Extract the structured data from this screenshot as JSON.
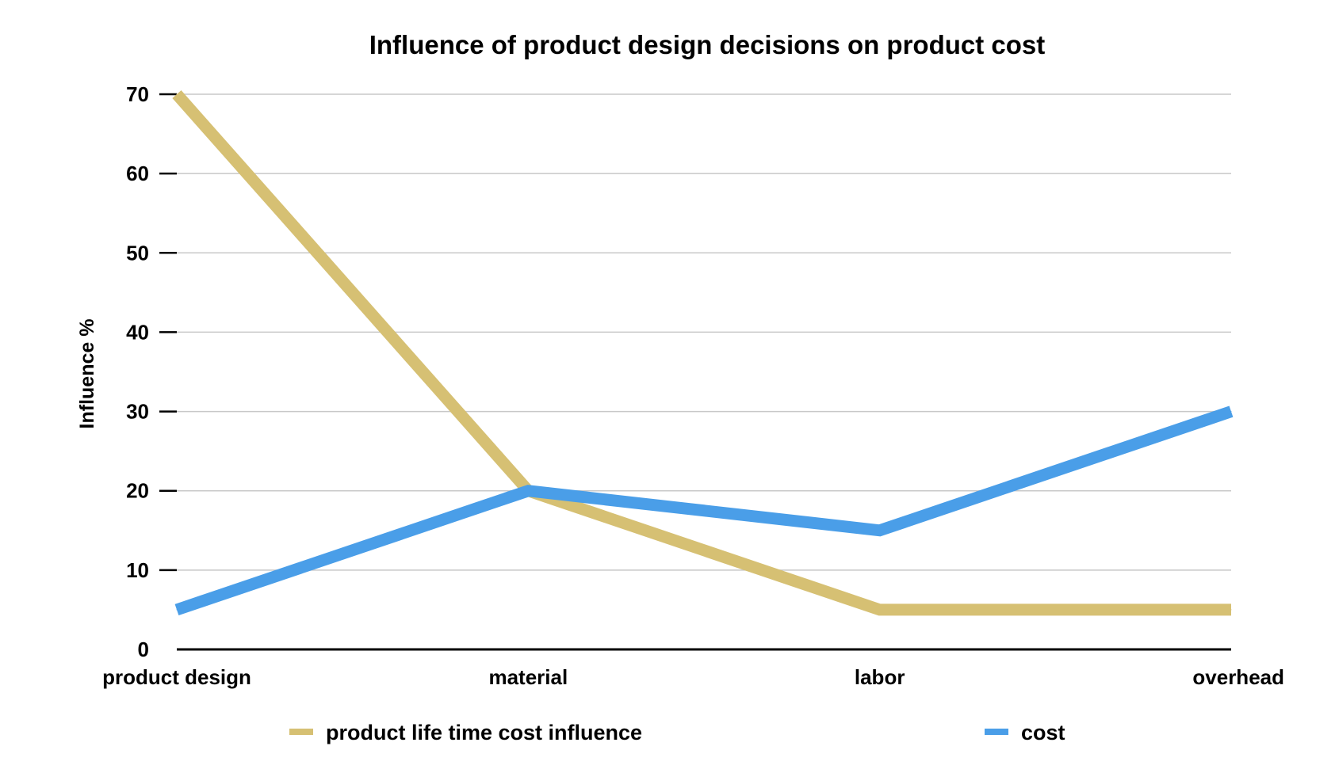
{
  "chart_data": {
    "type": "line",
    "title": "Influence of product design decisions on product cost",
    "xlabel": "",
    "ylabel": "Influence %",
    "categories": [
      "product design",
      "material",
      "labor",
      "overhead"
    ],
    "ylim": [
      0,
      70
    ],
    "yticks": [
      0,
      10,
      20,
      30,
      40,
      50,
      60,
      70
    ],
    "grid": true,
    "legend_position": "bottom",
    "series": [
      {
        "name": "product life time cost influence",
        "values": [
          70,
          20,
          5,
          5
        ],
        "color": "#d6c073"
      },
      {
        "name": "cost",
        "values": [
          5,
          20,
          15,
          30
        ],
        "color": "#4a9ee8"
      }
    ]
  }
}
